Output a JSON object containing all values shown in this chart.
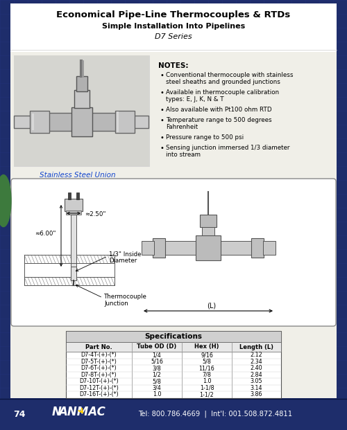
{
  "title1": "Economical Pipe-Line Thermocouples & RTDs",
  "title2": "Simple Installation Into Pipelines",
  "title3": "D7 Series",
  "notes_title": "NOTES:",
  "notes": [
    "Conventional thermocouple with stainless\nsteel sheaths and grounded junctions",
    "Available in thermocouple calibration\ntypes: E, J, K, N & T",
    "Also available with Pt100 ohm RTD",
    "Temperature range to 500 degrees\nFahrenheit",
    "Pressure range to 500 psi",
    "Sensing junction immersed 1/3 diameter\ninto stream"
  ],
  "caption": "Stainless Steel Union",
  "dim1": "≈2.50\"",
  "dim2": "≈6.00\"",
  "dim3": "1/3\" Inside\nDiameter",
  "dim4": "Thermocouple\nJunction",
  "dim5": "(L)",
  "spec_title": "Specifications",
  "spec_headers": [
    "Part No.",
    "Tube OD (D)",
    "Hex (H)",
    "Length (L)"
  ],
  "spec_rows": [
    [
      "D7-4T-(+)-(*)",
      "1/4",
      "9/16",
      "2.12"
    ],
    [
      "D7-5T-(+)-(*)",
      "5/16",
      "5/8",
      "2.34"
    ],
    [
      "D7-6T-(+)-(*)",
      "3/8",
      "11/16",
      "2.40"
    ],
    [
      "D7-8T-(+)-(*)",
      "1/2",
      "7/8",
      "2.84"
    ],
    [
      "D7-10T-(+)-(*)",
      "5/8",
      "1.0",
      "3.05"
    ],
    [
      "D7-12T-(+)-(*)",
      "3/4",
      "1-1/8",
      "3.14"
    ],
    [
      "D7-16T-(+)-(*)",
      "1.0",
      "1-1/2",
      "3.86"
    ]
  ],
  "page_num": "74",
  "footer_text": "Tel: 800.786.4669  |  Int'l: 001.508.872.4811",
  "bg_color": "#1e2d6b",
  "content_bg": "#f0efe8",
  "grid_color": "#253580"
}
